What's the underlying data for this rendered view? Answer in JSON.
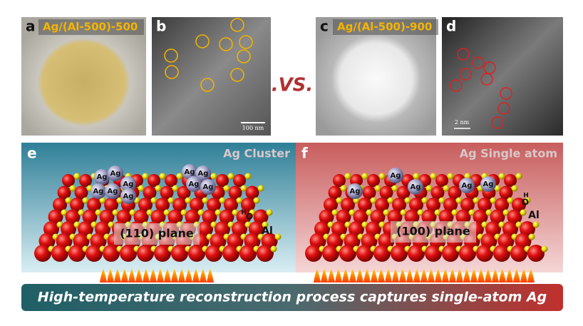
{
  "top_panels": [
    {
      "letter": "a",
      "caption": "Ag/(Al-500)-500"
    },
    {
      "letter": "b",
      "scale_bar": "100 nm"
    },
    {
      "letter": "c",
      "caption": "Ag/(Al-500)-900"
    },
    {
      "letter": "d",
      "scale_bar": "2 nm"
    }
  ],
  "versus": ".VS.",
  "bottom_panels": [
    {
      "letter": "e",
      "title": "Ag Cluster",
      "plane": "(110) plane",
      "atoms": [
        "Ag",
        "Ag",
        "Ag",
        "Ag",
        "Ag",
        "Ag",
        "Ag",
        "Ag",
        "Ag",
        "Ag"
      ],
      "species": [
        "H",
        "O",
        "Al"
      ]
    },
    {
      "letter": "f",
      "title": "Ag Single atom",
      "plane": "(100) plane",
      "atoms": [
        "Ag",
        "Ag",
        "Ag",
        "Ag",
        "Ag"
      ],
      "species": [
        "H",
        "O",
        "Al"
      ]
    }
  ],
  "banner": "High-temperature reconstruction process captures single-atom Ag"
}
